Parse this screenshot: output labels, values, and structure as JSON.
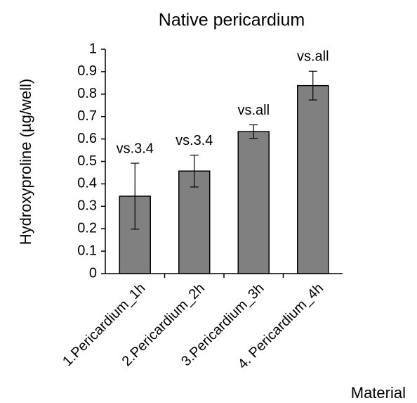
{
  "chart_data": {
    "type": "bar",
    "title": "Native pericardium",
    "x_label": "Material",
    "y_label": "Hydroxyproline (µg/well)",
    "categories": [
      "1.Pericardium_1h",
      "2.Pericardium_2h",
      "3.Pericardium_3h",
      "4. Pericardium_4h"
    ],
    "values": [
      0.345,
      0.457,
      0.633,
      0.838
    ],
    "errors": [
      0.147,
      0.071,
      0.03,
      0.064
    ],
    "annotations": [
      "vs.3.4",
      "vs.3.4",
      "vs.all",
      "vs.all"
    ],
    "color": "#808080",
    "ylim": [
      0,
      1
    ],
    "yticks": [
      0,
      0.1,
      0.2,
      0.3,
      0.4,
      0.5,
      0.6,
      0.7,
      0.8,
      0.9,
      1
    ],
    "grid": false
  }
}
